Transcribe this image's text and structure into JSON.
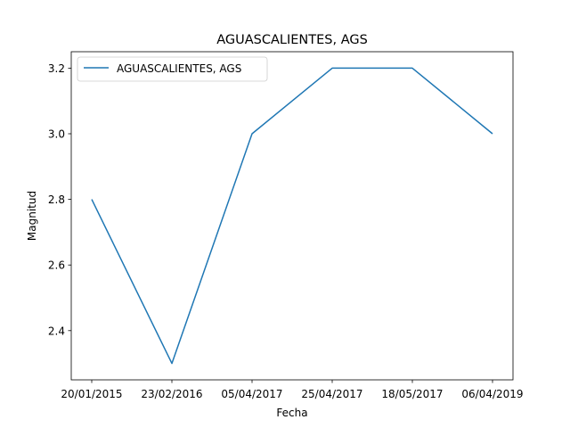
{
  "chart_data": {
    "type": "line",
    "title": "AGUASCALIENTES, AGS",
    "xlabel": "Fecha",
    "ylabel": "Magnitud",
    "categories": [
      "20/01/2015",
      "23/02/2016",
      "05/04/2017",
      "25/04/2017",
      "18/05/2017",
      "06/04/2019"
    ],
    "series": [
      {
        "name": "AGUASCALIENTES, AGS",
        "color": "#1f77b4",
        "values": [
          2.8,
          2.3,
          3.0,
          3.2,
          3.2,
          3.0
        ]
      }
    ],
    "ylim": [
      2.25,
      3.25
    ],
    "yticks": [
      2.4,
      2.6,
      2.8,
      3.0,
      3.2
    ],
    "ytick_labels": [
      "2.4",
      "2.6",
      "2.8",
      "3.0",
      "3.2"
    ],
    "grid": false,
    "legend": "top-left"
  }
}
